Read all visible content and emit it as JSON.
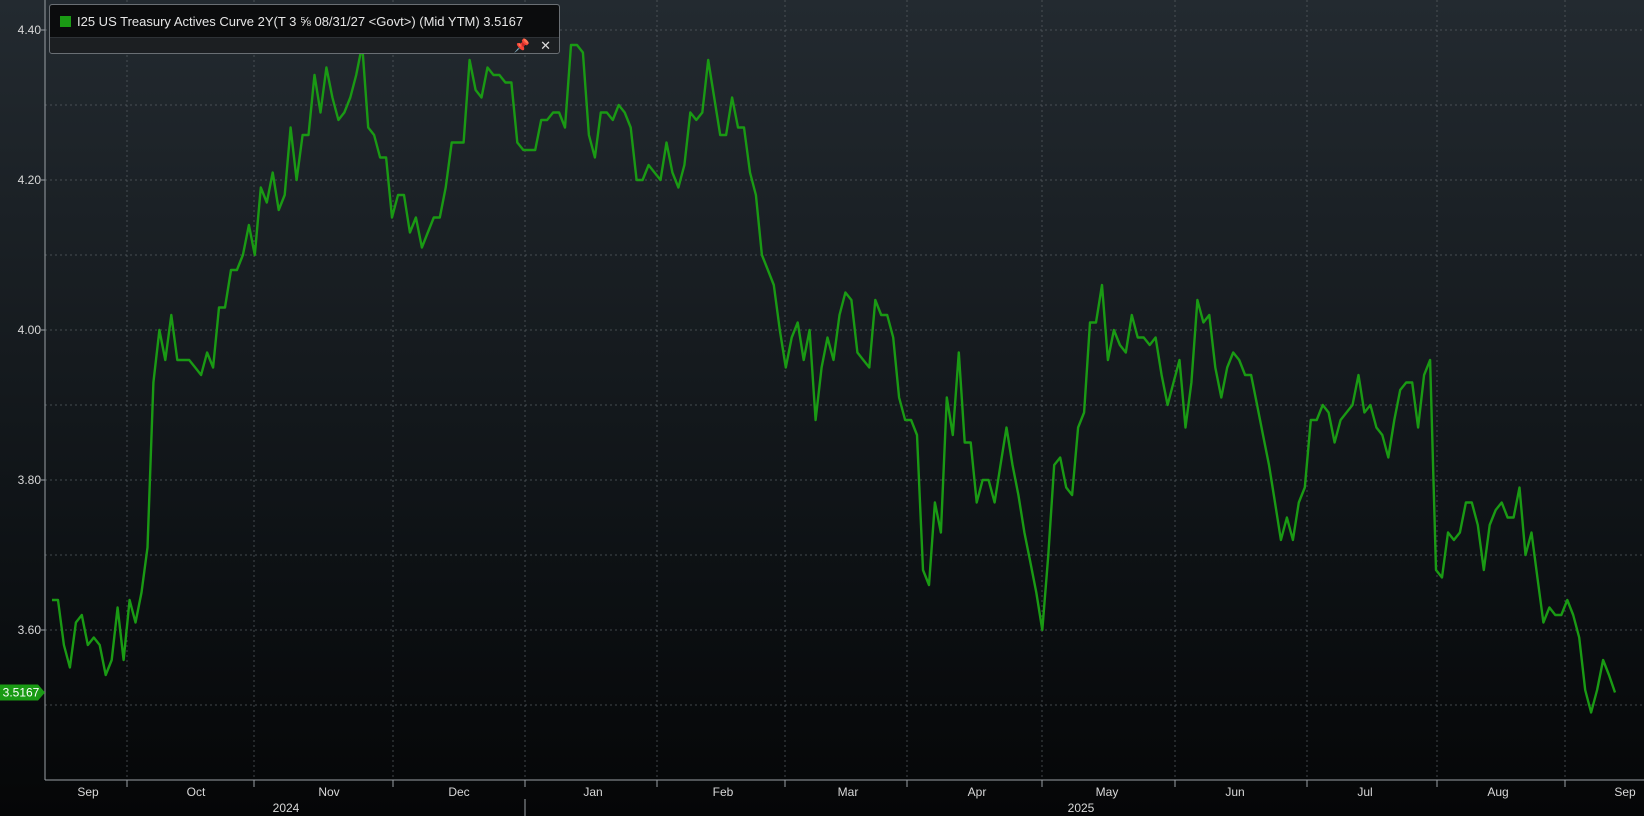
{
  "legend": {
    "text": "I25 US Treasury Actives Curve 2Y(T 3 ⅝ 08/31/27 <Govt>) (Mid YTM) 3.5167",
    "pin_icon": "pin-icon",
    "close_icon": "close-icon",
    "pin_glyph": "📌",
    "close_glyph": "✕"
  },
  "last_value_label": "3.5167",
  "colors": {
    "line": "#1a9a14",
    "grid": "#5a6166",
    "axis": "#9aa0a5",
    "badge": "#1a9a14"
  },
  "chart_data": {
    "type": "line",
    "series_name": "I25 US Treasury Actives Curve 2Y(T 3 ⅝ 08/31/27 <Govt>) (Mid YTM)",
    "ylim": [
      3.4,
      4.44
    ],
    "y_ticks": [
      3.6,
      3.8,
      4.0,
      4.2,
      4.4
    ],
    "y_tick_labels": [
      "3.60",
      "3.80",
      "4.00",
      "4.20",
      "4.40"
    ],
    "x_month_labels": [
      "Sep",
      "Oct",
      "Nov",
      "Dec",
      "Jan",
      "Feb",
      "Mar",
      "Apr",
      "May",
      "Jun",
      "Jul",
      "Aug",
      "Sep"
    ],
    "year_labels": [
      "2024",
      "2025"
    ],
    "grid": true,
    "last_value": 3.5167,
    "values": [
      3.64,
      3.64,
      3.58,
      3.55,
      3.61,
      3.62,
      3.58,
      3.59,
      3.58,
      3.54,
      3.56,
      3.63,
      3.56,
      3.64,
      3.61,
      3.65,
      3.71,
      3.93,
      4.0,
      3.96,
      4.02,
      3.96,
      3.96,
      3.96,
      3.95,
      3.94,
      3.97,
      3.95,
      4.03,
      4.03,
      4.08,
      4.08,
      4.1,
      4.14,
      4.1,
      4.19,
      4.17,
      4.21,
      4.16,
      4.18,
      4.27,
      4.2,
      4.26,
      4.26,
      4.34,
      4.29,
      4.35,
      4.31,
      4.28,
      4.29,
      4.31,
      4.34,
      4.38,
      4.27,
      4.26,
      4.23,
      4.23,
      4.15,
      4.18,
      4.18,
      4.13,
      4.15,
      4.11,
      4.13,
      4.15,
      4.15,
      4.19,
      4.25,
      4.25,
      4.25,
      4.36,
      4.32,
      4.31,
      4.35,
      4.34,
      4.34,
      4.33,
      4.33,
      4.25,
      4.24,
      4.24,
      4.24,
      4.28,
      4.28,
      4.29,
      4.29,
      4.27,
      4.38,
      4.38,
      4.37,
      4.26,
      4.23,
      4.29,
      4.29,
      4.28,
      4.3,
      4.29,
      4.27,
      4.2,
      4.2,
      4.22,
      4.21,
      4.2,
      4.25,
      4.21,
      4.19,
      4.22,
      4.29,
      4.28,
      4.29,
      4.36,
      4.31,
      4.26,
      4.26,
      4.31,
      4.27,
      4.27,
      4.21,
      4.18,
      4.1,
      4.08,
      4.06,
      4.0,
      3.95,
      3.99,
      4.01,
      3.96,
      4.0,
      3.88,
      3.95,
      3.99,
      3.96,
      4.02,
      4.05,
      4.04,
      3.97,
      3.96,
      3.95,
      4.04,
      4.02,
      4.02,
      3.99,
      3.91,
      3.88,
      3.88,
      3.86,
      3.68,
      3.66,
      3.77,
      3.73,
      3.91,
      3.86,
      3.97,
      3.85,
      3.85,
      3.77,
      3.8,
      3.8,
      3.77,
      3.82,
      3.87,
      3.82,
      3.78,
      3.73,
      3.69,
      3.65,
      3.6,
      3.7,
      3.82,
      3.83,
      3.79,
      3.78,
      3.87,
      3.89,
      4.01,
      4.01,
      4.06,
      3.96,
      4.0,
      3.98,
      3.97,
      4.02,
      3.99,
      3.99,
      3.98,
      3.99,
      3.94,
      3.9,
      3.93,
      3.96,
      3.87,
      3.93,
      4.04,
      4.01,
      4.02,
      3.95,
      3.91,
      3.95,
      3.97,
      3.96,
      3.94,
      3.94,
      3.9,
      3.86,
      3.82,
      3.77,
      3.72,
      3.75,
      3.72,
      3.77,
      3.79,
      3.88,
      3.88,
      3.9,
      3.89,
      3.85,
      3.88,
      3.89,
      3.9,
      3.94,
      3.89,
      3.9,
      3.87,
      3.86,
      3.83,
      3.88,
      3.92,
      3.93,
      3.93,
      3.87,
      3.94,
      3.96,
      3.68,
      3.67,
      3.73,
      3.72,
      3.73,
      3.77,
      3.77,
      3.74,
      3.68,
      3.74,
      3.76,
      3.77,
      3.75,
      3.75,
      3.79,
      3.7,
      3.73,
      3.67,
      3.61,
      3.63,
      3.62,
      3.62,
      3.64,
      3.62,
      3.59,
      3.52,
      3.49,
      3.52,
      3.56,
      3.54,
      3.5167
    ]
  }
}
